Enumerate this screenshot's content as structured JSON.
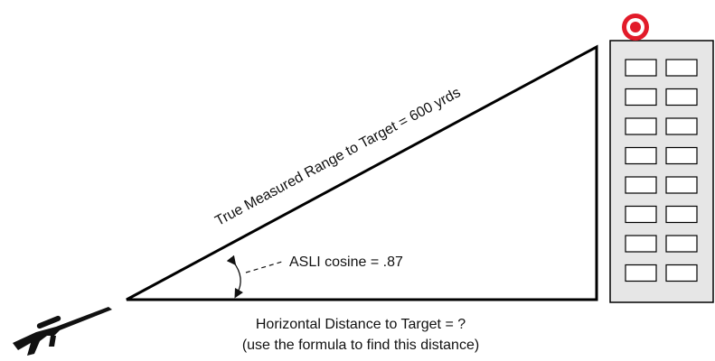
{
  "diagram": {
    "range_label": "True Measured Range to Target = 600 yrds",
    "angle_label": "ASLI cosine = .87",
    "horizontal_label": "Horizontal Distance to Target = ?",
    "formula_note": "(use the formula to find this distance)"
  }
}
